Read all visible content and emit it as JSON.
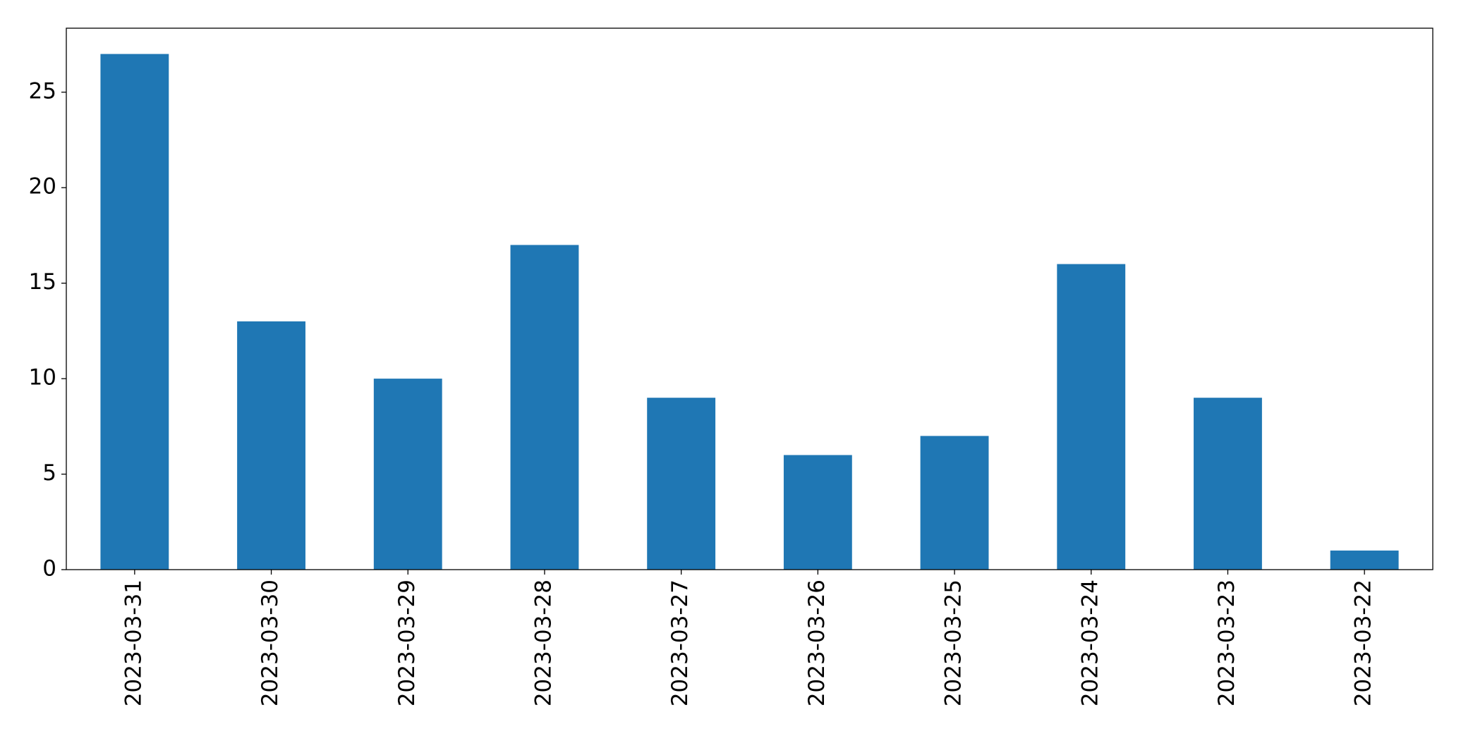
{
  "chart_data": {
    "type": "bar",
    "categories": [
      "2023-03-31",
      "2023-03-30",
      "2023-03-29",
      "2023-03-28",
      "2023-03-27",
      "2023-03-26",
      "2023-03-25",
      "2023-03-24",
      "2023-03-23",
      "2023-03-22"
    ],
    "values": [
      27,
      13,
      10,
      17,
      9,
      6,
      7,
      16,
      9,
      1
    ],
    "color": "#1f77b4",
    "ylim": [
      0,
      28.35
    ],
    "yticks": [
      0,
      5,
      10,
      15,
      20,
      25
    ],
    "grid": false
  }
}
